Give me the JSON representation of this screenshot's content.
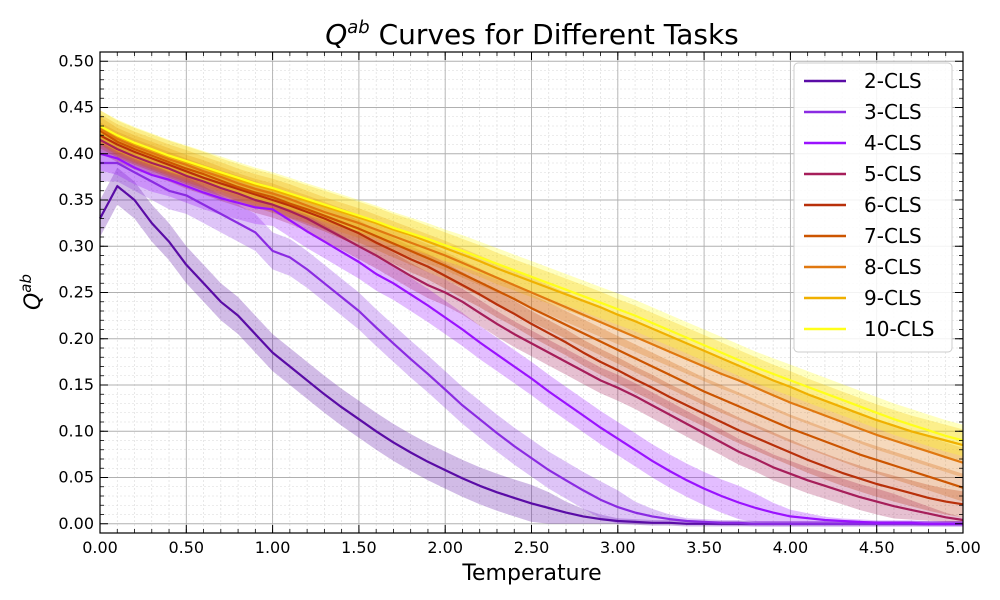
{
  "chart_data": {
    "type": "line",
    "title": "Q^{ab} Curves for Different Tasks",
    "title_main": "Q",
    "title_sup": "ab",
    "title_rest": " Curves for Different Tasks",
    "xlabel": "Temperature",
    "ylabel": "Q^{ab}",
    "ylabel_main": "Q",
    "ylabel_sup": "ab",
    "xlim": [
      0.0,
      5.0
    ],
    "ylim": [
      -0.01,
      0.51
    ],
    "x_ticks": [
      0,
      0.5,
      1,
      1.5,
      2,
      2.5,
      3,
      3.5,
      4,
      4.5,
      5
    ],
    "x_tick_labels": [
      "0.00",
      "0.50",
      "1.00",
      "1.50",
      "2.00",
      "2.50",
      "3.00",
      "3.50",
      "4.00",
      "4.50",
      "5.00"
    ],
    "y_ticks": [
      0,
      0.05,
      0.1,
      0.15,
      0.2,
      0.25,
      0.3,
      0.35,
      0.4,
      0.45,
      0.5
    ],
    "y_tick_labels": [
      "0.00",
      "0.05",
      "0.10",
      "0.15",
      "0.20",
      "0.25",
      "0.30",
      "0.35",
      "0.40",
      "0.45",
      "0.50"
    ],
    "grid": true,
    "legend_position": "top-right",
    "x": [
      0,
      0.1,
      0.2,
      0.3,
      0.4,
      0.5,
      0.6,
      0.7,
      0.8,
      0.9,
      1.0,
      1.1,
      1.2,
      1.3,
      1.4,
      1.5,
      1.6,
      1.7,
      1.8,
      1.9,
      2.0,
      2.1,
      2.2,
      2.3,
      2.4,
      2.5,
      2.6,
      2.7,
      2.8,
      2.9,
      3.0,
      3.1,
      3.2,
      3.3,
      3.4,
      3.5,
      3.6,
      3.7,
      3.8,
      3.9,
      4.0,
      4.1,
      4.2,
      4.3,
      4.4,
      4.5,
      4.6,
      4.7,
      4.8,
      4.9,
      5.0
    ],
    "series": [
      {
        "name": "2-CLS",
        "color": "#5a0ca6",
        "band": 0.02,
        "values": [
          0.33,
          0.365,
          0.35,
          0.325,
          0.305,
          0.28,
          0.26,
          0.24,
          0.225,
          0.205,
          0.185,
          0.17,
          0.155,
          0.14,
          0.126,
          0.113,
          0.1,
          0.088,
          0.077,
          0.067,
          0.058,
          0.049,
          0.041,
          0.034,
          0.028,
          0.022,
          0.017,
          0.012,
          0.008,
          0.005,
          0.003,
          0.002,
          0.001,
          0.001,
          0.0,
          0.0,
          0.0,
          0.0,
          0.0,
          0.0,
          0.0,
          0.0,
          0.0,
          0.0,
          0.0,
          0.0,
          0.0,
          0.0,
          0.0,
          0.0,
          0.0
        ]
      },
      {
        "name": "3-CLS",
        "color": "#8a2be2",
        "band": 0.02,
        "values": [
          0.39,
          0.39,
          0.38,
          0.37,
          0.36,
          0.355,
          0.345,
          0.335,
          0.325,
          0.315,
          0.295,
          0.288,
          0.275,
          0.26,
          0.245,
          0.23,
          0.212,
          0.195,
          0.178,
          0.162,
          0.145,
          0.128,
          0.113,
          0.098,
          0.084,
          0.071,
          0.058,
          0.047,
          0.036,
          0.026,
          0.018,
          0.012,
          0.008,
          0.005,
          0.003,
          0.002,
          0.001,
          0.001,
          0.0,
          0.0,
          0.0,
          0.0,
          0.0,
          0.0,
          0.0,
          0.0,
          0.0,
          0.0,
          0.0,
          0.0,
          0.0
        ]
      },
      {
        "name": "4-CLS",
        "color": "#9a12ff",
        "band": 0.018,
        "values": [
          0.4,
          0.395,
          0.385,
          0.377,
          0.372,
          0.365,
          0.358,
          0.352,
          0.347,
          0.342,
          0.34,
          0.328,
          0.316,
          0.305,
          0.294,
          0.283,
          0.27,
          0.26,
          0.248,
          0.236,
          0.223,
          0.21,
          0.196,
          0.183,
          0.17,
          0.157,
          0.143,
          0.13,
          0.117,
          0.104,
          0.092,
          0.08,
          0.068,
          0.057,
          0.047,
          0.038,
          0.03,
          0.023,
          0.017,
          0.012,
          0.008,
          0.006,
          0.004,
          0.003,
          0.002,
          0.001,
          0.001,
          0.001,
          0.0,
          0.0,
          0.0
        ]
      },
      {
        "name": "5-CLS",
        "color": "#a61e5a",
        "band": 0.014,
        "values": [
          0.415,
          0.405,
          0.397,
          0.39,
          0.384,
          0.376,
          0.37,
          0.363,
          0.357,
          0.35,
          0.345,
          0.338,
          0.33,
          0.32,
          0.31,
          0.3,
          0.29,
          0.279,
          0.268,
          0.258,
          0.25,
          0.24,
          0.228,
          0.216,
          0.205,
          0.195,
          0.185,
          0.175,
          0.165,
          0.155,
          0.147,
          0.138,
          0.128,
          0.118,
          0.108,
          0.098,
          0.088,
          0.078,
          0.07,
          0.061,
          0.054,
          0.047,
          0.041,
          0.035,
          0.029,
          0.024,
          0.019,
          0.015,
          0.011,
          0.007,
          0.004
        ]
      },
      {
        "name": "6-CLS",
        "color": "#b8300a",
        "band": 0.014,
        "values": [
          0.42,
          0.41,
          0.402,
          0.395,
          0.388,
          0.381,
          0.374,
          0.368,
          0.362,
          0.356,
          0.35,
          0.344,
          0.337,
          0.33,
          0.322,
          0.314,
          0.304,
          0.295,
          0.286,
          0.278,
          0.268,
          0.258,
          0.248,
          0.237,
          0.227,
          0.216,
          0.206,
          0.196,
          0.185,
          0.175,
          0.166,
          0.156,
          0.147,
          0.137,
          0.128,
          0.119,
          0.11,
          0.101,
          0.093,
          0.085,
          0.077,
          0.069,
          0.062,
          0.055,
          0.049,
          0.043,
          0.038,
          0.033,
          0.028,
          0.024,
          0.021
        ]
      },
      {
        "name": "7-CLS",
        "color": "#cc5500",
        "band": 0.015,
        "values": [
          0.425,
          0.413,
          0.405,
          0.398,
          0.391,
          0.384,
          0.378,
          0.371,
          0.364,
          0.358,
          0.353,
          0.346,
          0.34,
          0.333,
          0.326,
          0.319,
          0.311,
          0.303,
          0.295,
          0.287,
          0.279,
          0.27,
          0.261,
          0.252,
          0.243,
          0.233,
          0.224,
          0.215,
          0.206,
          0.197,
          0.188,
          0.179,
          0.17,
          0.161,
          0.152,
          0.143,
          0.135,
          0.127,
          0.119,
          0.111,
          0.103,
          0.096,
          0.089,
          0.082,
          0.075,
          0.069,
          0.063,
          0.057,
          0.051,
          0.045,
          0.039
        ]
      },
      {
        "name": "8-CLS",
        "color": "#e07810",
        "band": 0.016,
        "values": [
          0.427,
          0.416,
          0.408,
          0.401,
          0.394,
          0.388,
          0.381,
          0.375,
          0.368,
          0.362,
          0.357,
          0.351,
          0.344,
          0.337,
          0.331,
          0.325,
          0.318,
          0.311,
          0.304,
          0.297,
          0.29,
          0.282,
          0.274,
          0.266,
          0.258,
          0.25,
          0.242,
          0.234,
          0.226,
          0.218,
          0.21,
          0.202,
          0.194,
          0.186,
          0.178,
          0.17,
          0.162,
          0.155,
          0.147,
          0.139,
          0.131,
          0.124,
          0.117,
          0.11,
          0.103,
          0.096,
          0.09,
          0.084,
          0.078,
          0.072,
          0.066
        ]
      },
      {
        "name": "9-CLS",
        "color": "#f0b000",
        "band": 0.017,
        "values": [
          0.43,
          0.419,
          0.411,
          0.404,
          0.397,
          0.391,
          0.385,
          0.378,
          0.372,
          0.366,
          0.361,
          0.355,
          0.349,
          0.343,
          0.337,
          0.331,
          0.325,
          0.318,
          0.312,
          0.305,
          0.298,
          0.291,
          0.284,
          0.276,
          0.269,
          0.262,
          0.255,
          0.248,
          0.241,
          0.234,
          0.226,
          0.219,
          0.211,
          0.203,
          0.195,
          0.187,
          0.179,
          0.171,
          0.163,
          0.155,
          0.148,
          0.14,
          0.133,
          0.126,
          0.119,
          0.112,
          0.106,
          0.1,
          0.095,
          0.09,
          0.085
        ]
      },
      {
        "name": "10-CLS",
        "color": "#ffff1a",
        "band": 0.017,
        "values": [
          0.43,
          0.42,
          0.412,
          0.405,
          0.398,
          0.392,
          0.386,
          0.38,
          0.374,
          0.368,
          0.363,
          0.357,
          0.351,
          0.345,
          0.339,
          0.333,
          0.327,
          0.32,
          0.314,
          0.308,
          0.301,
          0.295,
          0.288,
          0.281,
          0.274,
          0.267,
          0.26,
          0.253,
          0.246,
          0.239,
          0.232,
          0.225,
          0.217,
          0.209,
          0.201,
          0.193,
          0.185,
          0.177,
          0.169,
          0.162,
          0.155,
          0.148,
          0.141,
          0.134,
          0.127,
          0.12,
          0.113,
          0.107,
          0.101,
          0.095,
          0.09
        ]
      }
    ]
  }
}
